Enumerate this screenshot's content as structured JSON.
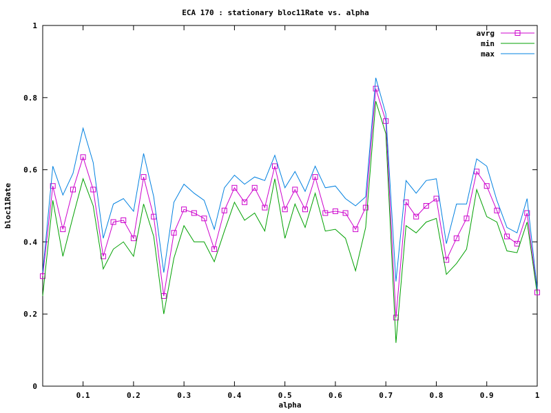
{
  "title": "ECA 170 : stationary bloc11Rate vs. alpha",
  "chart_data": {
    "type": "line",
    "title": "ECA 170 : stationary bloc11Rate vs. alpha",
    "xlabel": "alpha",
    "ylabel": "bloc11Rate",
    "xlim": [
      0.02,
      1.0
    ],
    "ylim": [
      0,
      1
    ],
    "grid": false,
    "legend_position": "top-right-inside",
    "x_ticks": [
      0.1,
      0.2,
      0.3,
      0.4,
      0.5,
      0.6,
      0.7,
      0.8,
      0.9,
      1
    ],
    "x_tick_labels": [
      "0.1",
      "0.2",
      "0.3",
      "0.4",
      "0.5",
      "0.6",
      "0.7",
      "0.8",
      "0.9",
      "1"
    ],
    "y_ticks": [
      0,
      0.2,
      0.4,
      0.6,
      0.8,
      1
    ],
    "y_tick_labels": [
      "0",
      "0.2",
      "0.4",
      "0.6",
      "0.8",
      "1"
    ],
    "x": [
      0.02,
      0.04,
      0.06,
      0.08,
      0.1,
      0.12,
      0.14,
      0.16,
      0.18,
      0.2,
      0.22,
      0.24,
      0.26,
      0.28,
      0.3,
      0.32,
      0.34,
      0.36,
      0.38,
      0.4,
      0.42,
      0.44,
      0.46,
      0.48,
      0.5,
      0.52,
      0.54,
      0.56,
      0.58,
      0.6,
      0.62,
      0.64,
      0.66,
      0.68,
      0.7,
      0.72,
      0.74,
      0.76,
      0.78,
      0.8,
      0.82,
      0.84,
      0.86,
      0.88,
      0.9,
      0.92,
      0.94,
      0.96,
      0.98,
      1.0
    ],
    "series": [
      {
        "name": "avrg",
        "color": "#cc00cc",
        "marker": "open-square",
        "values": [
          0.305,
          0.555,
          0.435,
          0.545,
          0.635,
          0.545,
          0.36,
          0.455,
          0.46,
          0.41,
          0.58,
          0.47,
          0.25,
          0.425,
          0.49,
          0.48,
          0.465,
          0.38,
          0.487,
          0.55,
          0.51,
          0.55,
          0.495,
          0.61,
          0.49,
          0.545,
          0.49,
          0.58,
          0.48,
          0.485,
          0.48,
          0.435,
          0.495,
          0.825,
          0.735,
          0.19,
          0.51,
          0.47,
          0.5,
          0.52,
          0.35,
          0.41,
          0.465,
          0.595,
          0.555,
          0.487,
          0.415,
          0.395,
          0.48,
          0.26
        ]
      },
      {
        "name": "min",
        "color": "#00a000",
        "marker": "none",
        "values": [
          0.25,
          0.515,
          0.36,
          0.47,
          0.575,
          0.5,
          0.325,
          0.38,
          0.4,
          0.36,
          0.505,
          0.415,
          0.2,
          0.355,
          0.445,
          0.4,
          0.4,
          0.345,
          0.43,
          0.51,
          0.46,
          0.48,
          0.43,
          0.575,
          0.41,
          0.505,
          0.44,
          0.535,
          0.43,
          0.435,
          0.41,
          0.32,
          0.44,
          0.79,
          0.7,
          0.12,
          0.445,
          0.425,
          0.455,
          0.465,
          0.31,
          0.34,
          0.38,
          0.545,
          0.47,
          0.455,
          0.375,
          0.37,
          0.455,
          0.255
        ]
      },
      {
        "name": "max",
        "color": "#0080e0",
        "marker": "none",
        "values": [
          0.315,
          0.61,
          0.53,
          0.59,
          0.715,
          0.62,
          0.41,
          0.505,
          0.52,
          0.485,
          0.645,
          0.525,
          0.315,
          0.51,
          0.56,
          0.535,
          0.515,
          0.435,
          0.55,
          0.585,
          0.56,
          0.58,
          0.57,
          0.64,
          0.55,
          0.595,
          0.54,
          0.61,
          0.55,
          0.555,
          0.52,
          0.5,
          0.525,
          0.855,
          0.755,
          0.29,
          0.57,
          0.535,
          0.57,
          0.575,
          0.395,
          0.505,
          0.505,
          0.63,
          0.61,
          0.515,
          0.44,
          0.425,
          0.52,
          0.27
        ]
      }
    ]
  }
}
